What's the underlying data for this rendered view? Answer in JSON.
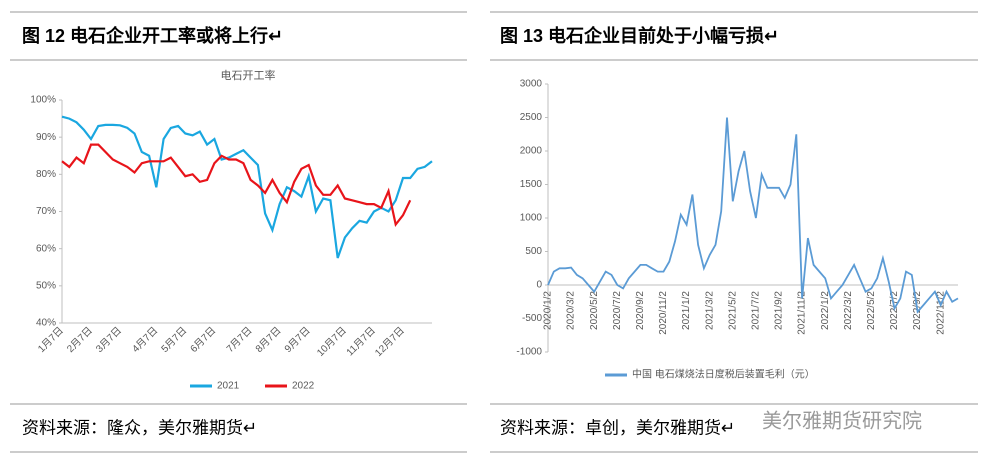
{
  "figures": [
    {
      "caption": "图 12  电石企业开工率或将上行↵",
      "source": "资料来源：隆众，美尔雅期货↵"
    },
    {
      "caption": "图 13  电石企业目前处于小幅亏损↵",
      "source": "资料来源：卓创，美尔雅期货↵"
    }
  ],
  "watermark": "美尔雅期货研究院",
  "chart_data": [
    {
      "type": "line",
      "title": "电石开工率",
      "categories": [
        "1月7日",
        null,
        null,
        null,
        "2月7日",
        null,
        null,
        null,
        "3月7日",
        null,
        null,
        null,
        null,
        "4月7日",
        null,
        null,
        null,
        "5月7日",
        null,
        null,
        null,
        "6月7日",
        null,
        null,
        null,
        null,
        "7月7日",
        null,
        null,
        null,
        "8月7日",
        null,
        null,
        null,
        "9月7日",
        null,
        null,
        null,
        null,
        "10月7日",
        null,
        null,
        null,
        "11月7日",
        null,
        null,
        null,
        "12月7日",
        null,
        null,
        null,
        null
      ],
      "series": [
        {
          "name": "2021",
          "color": "#1aa7e0",
          "values": [
            95.5,
            95,
            94,
            92,
            89.5,
            93,
            93.3,
            93.3,
            93.2,
            92.5,
            91,
            86,
            85,
            76.5,
            89.5,
            92.5,
            93,
            91,
            90.5,
            91.5,
            88,
            89.5,
            84,
            84.5,
            85.5,
            86.5,
            84.5,
            82.5,
            69.5,
            65,
            72,
            76.5,
            75.5,
            74,
            79.5,
            70,
            73.5,
            73,
            57.5,
            63,
            65.5,
            67.5,
            67,
            70,
            71,
            70,
            73,
            79,
            79,
            81.5,
            82,
            83.5
          ]
        },
        {
          "name": "2022",
          "color": "#e8141a",
          "values": [
            83.5,
            82,
            84.5,
            83,
            88,
            88,
            86,
            84,
            83,
            82,
            80.5,
            83,
            83.5,
            83.5,
            83.5,
            84.5,
            82,
            79.5,
            80,
            78,
            78.5,
            83,
            85,
            84,
            84,
            83,
            78.5,
            77,
            75,
            78.5,
            75,
            72.5,
            78,
            81.5,
            82.5,
            77,
            74.5,
            74.5,
            77,
            73.5,
            73,
            72.5,
            72,
            72,
            71,
            75.5,
            66.5,
            69,
            73,
            null,
            null,
            null
          ]
        }
      ],
      "ylim": [
        40,
        100
      ],
      "yticks": [
        {
          "value": 40,
          "label": "40%"
        },
        {
          "value": 50,
          "label": "50%"
        },
        {
          "value": 60,
          "label": "60%"
        },
        {
          "value": 70,
          "label": "70%"
        },
        {
          "value": 80,
          "label": "80%"
        },
        {
          "value": 90,
          "label": "90%"
        },
        {
          "value": 100,
          "label": "100%"
        }
      ],
      "grid": false,
      "legend": "bottom"
    },
    {
      "type": "line",
      "categories": [
        "2020/1/2",
        null,
        null,
        null,
        "2020/3/2",
        null,
        null,
        null,
        "2020/5/2",
        null,
        null,
        null,
        "2020/7/2",
        null,
        null,
        null,
        "2020/9/2",
        null,
        null,
        null,
        "2020/11/2",
        null,
        null,
        null,
        "2021/1/2",
        null,
        null,
        null,
        "2021/3/2",
        null,
        null,
        null,
        "2021/5/2",
        null,
        null,
        null,
        "2021/7/2",
        null,
        null,
        null,
        "2021/9/2",
        null,
        null,
        null,
        "2021/11/2",
        null,
        null,
        null,
        "2022/1/2",
        null,
        null,
        null,
        "2022/3/2",
        null,
        null,
        null,
        "2022/5/2",
        null,
        null,
        null,
        "2022/7/2",
        null,
        null,
        null,
        "2022/9/2",
        null,
        null,
        null,
        "2022/11/2",
        null,
        null,
        null
      ],
      "series": [
        {
          "name": "中国 电石煤烧法日度税后装置毛利（元）",
          "color": "#5b9bd5",
          "values": [
            0,
            200,
            250,
            250,
            260,
            150,
            100,
            0,
            -100,
            50,
            200,
            150,
            0,
            -50,
            100,
            200,
            300,
            300,
            250,
            200,
            200,
            350,
            650,
            1050,
            900,
            1350,
            600,
            250,
            450,
            600,
            1100,
            2500,
            1250,
            1700,
            2000,
            1400,
            1000,
            1650,
            1450,
            1450,
            1450,
            1300,
            1500,
            2250,
            -200,
            700,
            300,
            200,
            100,
            -200,
            -100,
            0,
            150,
            300,
            100,
            -100,
            -50,
            100,
            400,
            50,
            -350,
            -200,
            200,
            150,
            -400,
            -300,
            -200,
            -100,
            -300,
            -100,
            -250,
            -200
          ]
        }
      ],
      "ylim": [
        -1000,
        3000
      ],
      "yticks": [
        -1000,
        -500,
        0,
        500,
        1000,
        1500,
        2000,
        2500,
        3000
      ],
      "grid": false,
      "legend": "bottom"
    }
  ]
}
